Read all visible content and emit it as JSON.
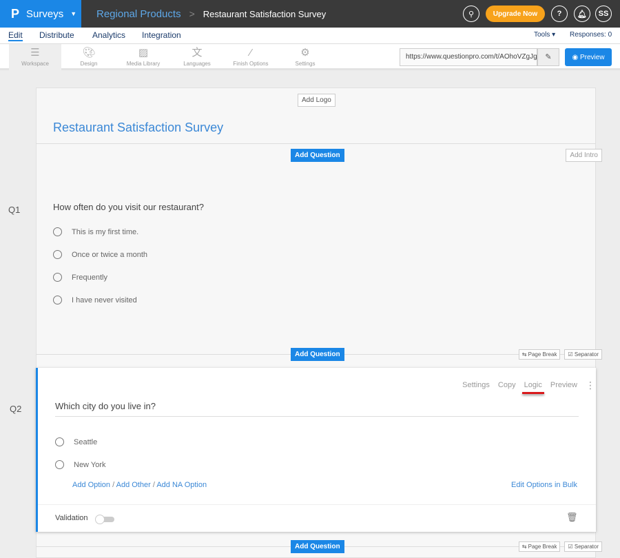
{
  "header": {
    "app": "Surveys",
    "logo": "P",
    "breadcrumb_parent": "Regional Products",
    "breadcrumb_separator": ">",
    "title": "Restaurant Satisfaction Survey",
    "upgrade": "Upgrade Now",
    "help": "?",
    "avatar": "SS"
  },
  "nav": {
    "tabs": [
      "Edit",
      "Distribute",
      "Analytics",
      "Integration"
    ],
    "active": "Edit",
    "tools": "Tools",
    "responses": "Responses: 0"
  },
  "toolbar": {
    "items": [
      {
        "label": "Workspace",
        "icon": "workspace-icon"
      },
      {
        "label": "Design",
        "icon": "palette-icon"
      },
      {
        "label": "Media Library",
        "icon": "image-icon"
      },
      {
        "label": "Languages",
        "icon": "translate-icon"
      },
      {
        "label": "Finish Options",
        "icon": "magic-wand-icon"
      },
      {
        "label": "Settings",
        "icon": "gear-icon"
      }
    ],
    "url": "https://www.questionpro.com/t/AOhoVZgJg",
    "preview": "Preview"
  },
  "survey": {
    "add_logo": "Add Logo",
    "title": "Restaurant Satisfaction Survey",
    "add_question": "Add Question",
    "add_intro": "Add Intro",
    "page_break": "Page Break",
    "separator": "Separator"
  },
  "q1": {
    "number": "Q1",
    "text": "How often do you visit our restaurant?",
    "options": [
      "This is my first time.",
      "Once or twice a month",
      "Frequently",
      "I have never visited"
    ]
  },
  "q2": {
    "number": "Q2",
    "text": "Which city do you live in?",
    "actions": [
      "Settings",
      "Copy",
      "Logic",
      "Preview"
    ],
    "options": [
      "Seattle",
      "New York"
    ],
    "add_option": "Add Option",
    "add_other": "Add Other",
    "add_na": "Add NA Option",
    "slash": "/",
    "bulk": "Edit Options in Bulk",
    "validation": "Validation"
  },
  "colors": {
    "accent": "#1b87e6",
    "header": "#3a3a3a",
    "upgrade": "#f7a21b",
    "logic_underline": "#d9191c"
  }
}
